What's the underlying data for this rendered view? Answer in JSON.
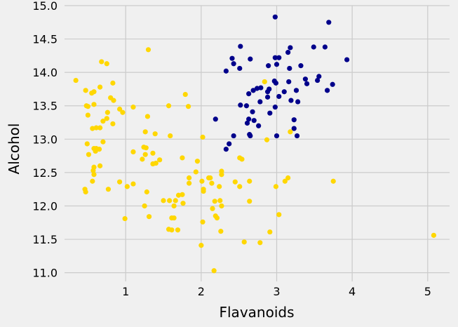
{
  "chart_data": {
    "type": "scatter",
    "title": "",
    "xlabel": "Flavanoids",
    "ylabel": "Alcohol",
    "xlim": [
      0.19,
      5.29
    ],
    "ylim": [
      10.87,
      15.0
    ],
    "xticks": [
      1,
      2,
      3,
      4,
      5
    ],
    "xtick_labels": [
      "1",
      "2",
      "3",
      "4",
      "5"
    ],
    "yticks": [
      11.0,
      11.5,
      12.0,
      12.5,
      13.0,
      13.5,
      14.0,
      14.5,
      15.0
    ],
    "ytick_labels": [
      "11.0",
      "11.5",
      "12.0",
      "12.5",
      "13.0",
      "13.5",
      "14.0",
      "14.5",
      "15.0"
    ],
    "grid": true,
    "legend": "none",
    "series": [
      {
        "color": "#00008b",
        "points": [
          [
            2.98,
            14.83
          ],
          [
            3.69,
            14.75
          ],
          [
            2.52,
            14.39
          ],
          [
            3.49,
            14.38
          ],
          [
            3.64,
            14.38
          ],
          [
            3.18,
            14.37
          ],
          [
            3.15,
            14.3
          ],
          [
            3.03,
            14.22
          ],
          [
            2.98,
            14.22
          ],
          [
            2.41,
            14.21
          ],
          [
            2.65,
            14.2
          ],
          [
            3.93,
            14.19
          ],
          [
            2.43,
            14.13
          ],
          [
            3.0,
            14.12
          ],
          [
            2.89,
            14.1
          ],
          [
            3.32,
            14.1
          ],
          [
            2.51,
            14.06
          ],
          [
            3.17,
            14.06
          ],
          [
            2.33,
            14.02
          ],
          [
            3.67,
            13.73
          ],
          [
            3.56,
            13.94
          ],
          [
            3.54,
            13.88
          ],
          [
            3.38,
            13.9
          ],
          [
            3.4,
            13.83
          ],
          [
            3.74,
            13.82
          ],
          [
            3.16,
            13.86
          ],
          [
            2.97,
            13.87
          ],
          [
            2.99,
            13.84
          ],
          [
            2.69,
            13.73
          ],
          [
            2.79,
            13.77
          ],
          [
            2.74,
            13.76
          ],
          [
            2.9,
            13.75
          ],
          [
            2.88,
            13.71
          ],
          [
            2.63,
            13.68
          ],
          [
            3.1,
            13.71
          ],
          [
            2.88,
            13.63
          ],
          [
            3.03,
            13.64
          ],
          [
            3.26,
            13.73
          ],
          [
            3.19,
            13.58
          ],
          [
            2.78,
            13.56
          ],
          [
            3.28,
            13.56
          ],
          [
            2.52,
            13.51
          ],
          [
            2.6,
            13.5
          ],
          [
            2.98,
            13.48
          ],
          [
            2.68,
            13.41
          ],
          [
            2.91,
            13.39
          ],
          [
            2.63,
            13.3
          ],
          [
            2.7,
            13.28
          ],
          [
            2.19,
            13.3
          ],
          [
            3.23,
            13.29
          ],
          [
            2.61,
            13.24
          ],
          [
            2.76,
            13.2
          ],
          [
            3.23,
            13.16
          ],
          [
            2.43,
            13.05
          ],
          [
            3.0,
            13.05
          ],
          [
            3.27,
            13.05
          ],
          [
            2.64,
            13.07
          ],
          [
            2.65,
            13.05
          ],
          [
            2.37,
            12.93
          ],
          [
            2.33,
            12.85
          ]
        ]
      },
      {
        "color": "#ffd700",
        "points": [
          [
            0.34,
            13.88
          ],
          [
            0.68,
            14.16
          ],
          [
            0.75,
            14.13
          ],
          [
            1.3,
            14.34
          ],
          [
            0.47,
            13.73
          ],
          [
            0.66,
            13.78
          ],
          [
            0.83,
            13.84
          ],
          [
            0.58,
            13.71
          ],
          [
            0.55,
            13.69
          ],
          [
            0.8,
            13.62
          ],
          [
            0.84,
            13.58
          ],
          [
            0.58,
            13.52
          ],
          [
            0.48,
            13.5
          ],
          [
            0.5,
            13.49
          ],
          [
            0.96,
            13.4
          ],
          [
            0.92,
            13.45
          ],
          [
            1.1,
            13.48
          ],
          [
            1.57,
            13.5
          ],
          [
            1.83,
            13.49
          ],
          [
            1.79,
            13.67
          ],
          [
            0.76,
            13.4
          ],
          [
            0.5,
            13.36
          ],
          [
            0.75,
            13.31
          ],
          [
            0.7,
            13.27
          ],
          [
            0.83,
            13.23
          ],
          [
            1.29,
            13.34
          ],
          [
            0.61,
            13.17
          ],
          [
            0.66,
            13.17
          ],
          [
            0.56,
            13.16
          ],
          [
            1.26,
            13.11
          ],
          [
            1.39,
            13.08
          ],
          [
            1.59,
            13.05
          ],
          [
            2.02,
            13.03
          ],
          [
            0.7,
            12.96
          ],
          [
            0.49,
            12.93
          ],
          [
            0.58,
            12.86
          ],
          [
            0.61,
            12.86
          ],
          [
            0.65,
            12.85
          ],
          [
            0.6,
            12.82
          ],
          [
            1.24,
            12.88
          ],
          [
            1.27,
            12.87
          ],
          [
            1.1,
            12.81
          ],
          [
            1.36,
            12.79
          ],
          [
            1.26,
            12.77
          ],
          [
            0.51,
            12.77
          ],
          [
            1.75,
            12.72
          ],
          [
            1.22,
            12.7
          ],
          [
            1.45,
            12.69
          ],
          [
            1.4,
            12.64
          ],
          [
            1.36,
            12.63
          ],
          [
            0.66,
            12.6
          ],
          [
            0.58,
            12.58
          ],
          [
            0.57,
            12.53
          ],
          [
            0.58,
            12.47
          ],
          [
            0.92,
            12.36
          ],
          [
            0.56,
            12.37
          ],
          [
            1.02,
            12.29
          ],
          [
            1.1,
            12.33
          ],
          [
            0.46,
            12.25
          ],
          [
            0.47,
            12.21
          ],
          [
            0.77,
            12.25
          ],
          [
            1.28,
            12.21
          ],
          [
            1.25,
            12.0
          ],
          [
            0.99,
            11.81
          ],
          [
            1.31,
            11.84
          ],
          [
            1.5,
            12.08
          ],
          [
            1.58,
            12.08
          ],
          [
            1.66,
            12.08
          ],
          [
            1.7,
            12.16
          ],
          [
            1.75,
            12.17
          ],
          [
            1.64,
            12.0
          ],
          [
            1.76,
            12.04
          ],
          [
            1.84,
            12.42
          ],
          [
            1.84,
            12.34
          ],
          [
            1.93,
            12.51
          ],
          [
            1.95,
            12.67
          ],
          [
            2.01,
            12.37
          ],
          [
            2.03,
            12.25
          ],
          [
            2.03,
            12.22
          ],
          [
            2.1,
            12.42
          ],
          [
            2.12,
            12.42
          ],
          [
            2.14,
            12.34
          ],
          [
            2.27,
            12.52
          ],
          [
            2.27,
            12.47
          ],
          [
            2.24,
            12.29
          ],
          [
            2.25,
            12.08
          ],
          [
            2.27,
            12.0
          ],
          [
            2.15,
            11.96
          ],
          [
            2.18,
            12.07
          ],
          [
            2.19,
            11.85
          ],
          [
            2.21,
            11.82
          ],
          [
            2.26,
            11.62
          ],
          [
            2.02,
            11.76
          ],
          [
            2.0,
            11.41
          ],
          [
            2.17,
            11.03
          ],
          [
            1.61,
            11.82
          ],
          [
            1.64,
            11.82
          ],
          [
            1.57,
            11.65
          ],
          [
            1.61,
            11.64
          ],
          [
            1.69,
            11.64
          ],
          [
            2.57,
            11.46
          ],
          [
            2.78,
            11.45
          ],
          [
            2.91,
            11.61
          ],
          [
            2.64,
            12.07
          ],
          [
            2.45,
            12.36
          ],
          [
            2.51,
            12.29
          ],
          [
            2.64,
            12.37
          ],
          [
            2.51,
            12.72
          ],
          [
            2.54,
            12.7
          ],
          [
            2.87,
            12.99
          ],
          [
            2.84,
            13.86
          ],
          [
            2.99,
            12.29
          ],
          [
            3.03,
            11.87
          ],
          [
            3.11,
            12.37
          ],
          [
            3.15,
            12.42
          ],
          [
            3.18,
            13.11
          ],
          [
            3.75,
            12.37
          ],
          [
            5.08,
            11.56
          ]
        ]
      }
    ]
  }
}
